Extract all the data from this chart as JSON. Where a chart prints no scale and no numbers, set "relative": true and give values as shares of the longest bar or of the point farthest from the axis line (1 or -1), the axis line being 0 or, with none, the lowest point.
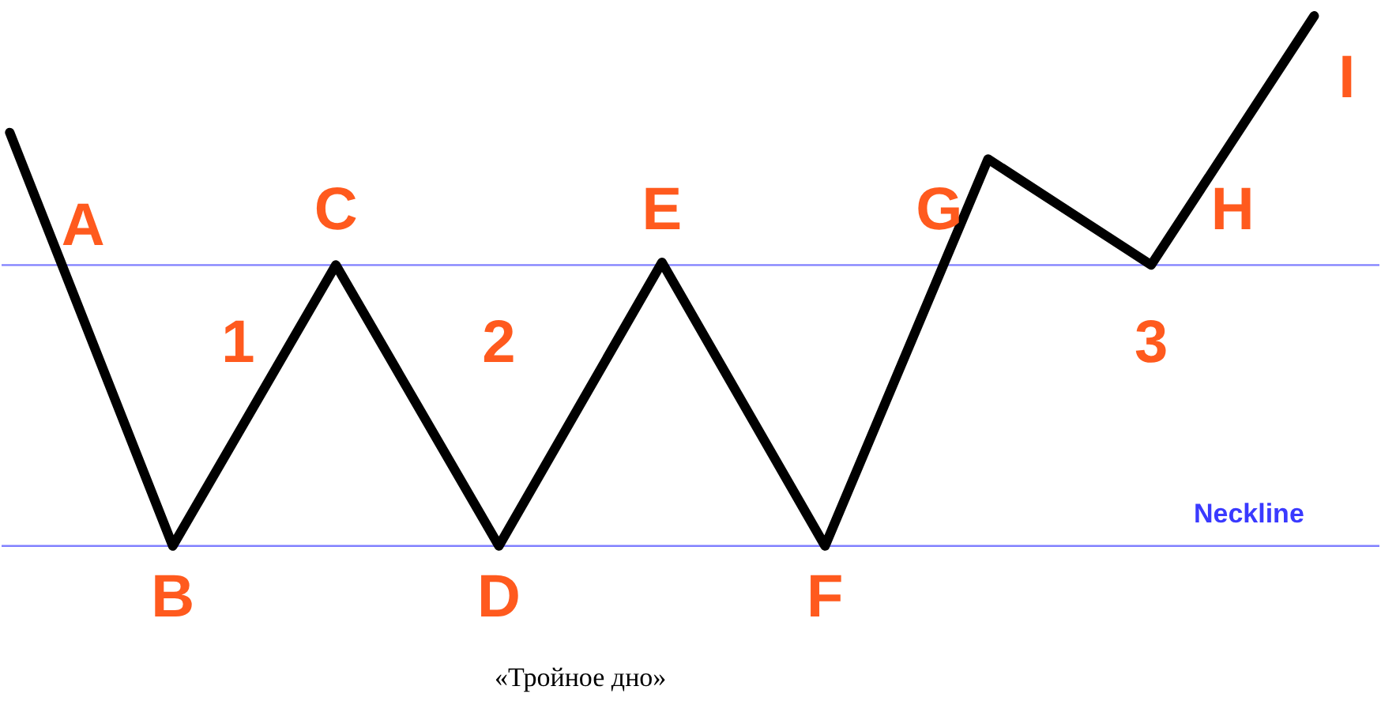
{
  "chart_data": {
    "type": "line",
    "relative": true,
    "categories": [
      null,
      null,
      null,
      null,
      null,
      null,
      null,
      null,
      null
    ],
    "series": [
      {
        "color": "#000000",
        "values": [
          0.78,
          0,
          0.53,
          0,
          0.535,
          0,
          0.73,
          0.53,
          1
        ]
      }
    ],
    "ref_lines": [
      {
        "axis": "y",
        "value": 0.53,
        "color": "#8080ff"
      },
      {
        "axis": "y",
        "value": 0,
        "color": "#8080ff"
      }
    ],
    "annotations": [
      "A",
      "B",
      "C",
      "D",
      "E",
      "F",
      "G",
      "H",
      "I",
      "1",
      "2",
      "3",
      "Neckline",
      "«Тройное дно»"
    ],
    "marker": "none",
    "line_style": "solid"
  }
}
